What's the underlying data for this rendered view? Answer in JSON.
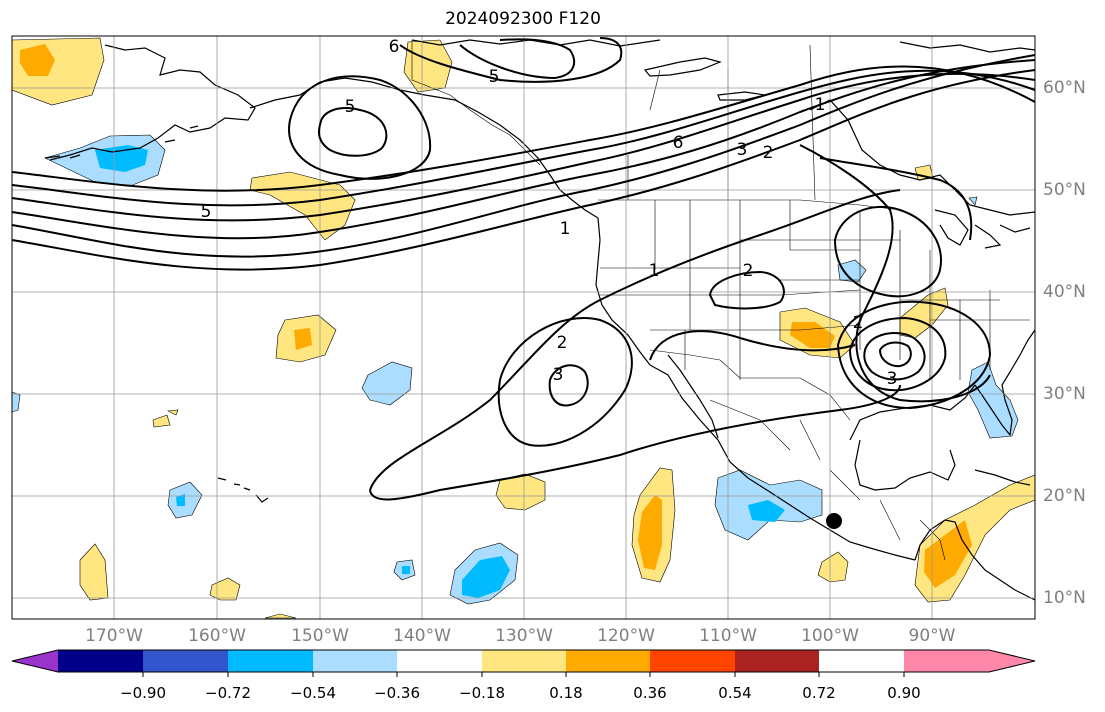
{
  "title": "2024092300 F120",
  "lon_labels": [
    "170°W",
    "160°W",
    "150°W",
    "140°W",
    "130°W",
    "120°W",
    "110°W",
    "100°W",
    "90°W"
  ],
  "lat_labels": [
    "60°N",
    "50°N",
    "40°N",
    "30°N",
    "20°N",
    "10°N"
  ],
  "contour_labels": [
    "6",
    "5",
    "5",
    "6",
    "3",
    "2",
    "5",
    "1",
    "1",
    "2",
    "2",
    "2",
    "3",
    "3",
    "1"
  ],
  "colorbar": {
    "ticks": [
      "−0.90",
      "−0.72",
      "−0.54",
      "−0.36",
      "−0.18",
      "0.18",
      "0.36",
      "0.54",
      "0.72",
      "0.90"
    ],
    "colors": [
      "#9a33cc",
      "#000088",
      "#3355cc",
      "#00bbff",
      "#aaddff",
      "#ffffff",
      "#ffe680",
      "#ffaa00",
      "#ff4400",
      "#aa2222",
      "#ff88aa"
    ]
  },
  "fill_colors": {
    "light_blue": "#aaddff",
    "blue": "#00bbff",
    "light_yellow": "#ffe680",
    "orange": "#ffaa00"
  },
  "marker": "storm-center-dot"
}
